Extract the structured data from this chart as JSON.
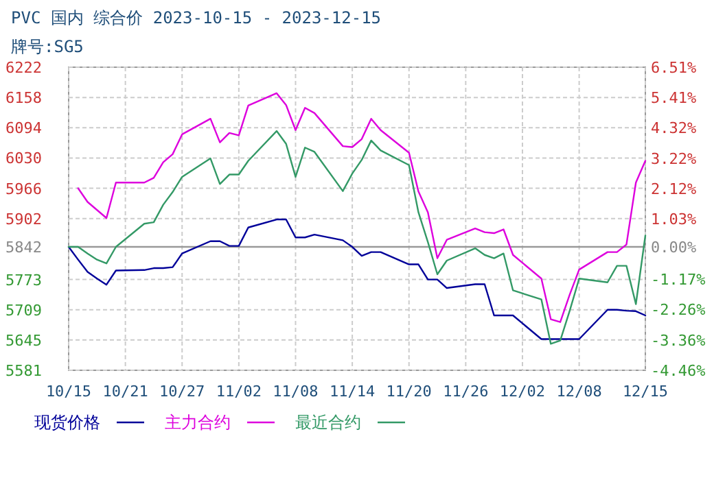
{
  "chart_data": {
    "type": "line",
    "title": "PVC 国内 综合价 2023-10-15 - 2023-12-15",
    "subtitle": "牌号:SG5",
    "x": [
      "2023-10-15",
      "2023-10-16",
      "2023-10-17",
      "2023-10-18",
      "2023-10-19",
      "2023-10-20",
      "2023-10-23",
      "2023-10-24",
      "2023-10-25",
      "2023-10-26",
      "2023-10-27",
      "2023-10-30",
      "2023-10-31",
      "2023-11-01",
      "2023-11-02",
      "2023-11-03",
      "2023-11-06",
      "2023-11-07",
      "2023-11-08",
      "2023-11-09",
      "2023-11-10",
      "2023-11-13",
      "2023-11-14",
      "2023-11-15",
      "2023-11-16",
      "2023-11-17",
      "2023-11-20",
      "2023-11-21",
      "2023-11-22",
      "2023-11-23",
      "2023-11-24",
      "2023-11-27",
      "2023-11-28",
      "2023-11-29",
      "2023-11-30",
      "2023-12-01",
      "2023-12-04",
      "2023-12-05",
      "2023-12-06",
      "2023-12-07",
      "2023-12-08",
      "2023-12-11",
      "2023-12-12",
      "2023-12-13",
      "2023-12-14",
      "2023-12-15"
    ],
    "series": [
      {
        "name": "现货价格",
        "color": "#000099",
        "values": [
          5842,
          5815,
          5789,
          5775,
          5762,
          5792,
          5793,
          5797,
          5797,
          5799,
          5828,
          5854,
          5854,
          5844,
          5844,
          5883,
          5900,
          5900,
          5862,
          5862,
          5868,
          5856,
          5842,
          5823,
          5831,
          5831,
          5805,
          5805,
          5773,
          5773,
          5755,
          5763,
          5763,
          5697,
          5697,
          5697,
          5647,
          5647,
          5647,
          5647,
          5647,
          5709,
          5709,
          5707,
          5706,
          5697
        ]
      },
      {
        "name": "主力合约",
        "color": "#dd00dd",
        "values": [
          null,
          5966,
          5937,
          5920,
          5903,
          5978,
          5978,
          5988,
          6021,
          6038,
          6080,
          6113,
          6063,
          6083,
          6078,
          6141,
          6167,
          6142,
          6089,
          6136,
          6125,
          6055,
          6053,
          6070,
          6113,
          6089,
          6041,
          5959,
          5915,
          5818,
          5857,
          5881,
          5873,
          5871,
          5879,
          5825,
          5775,
          5689,
          5683,
          5741,
          5794,
          5831,
          5831,
          5847,
          5978,
          6024
        ]
      },
      {
        "name": "最近合约",
        "color": "#339966",
        "values": [
          5842,
          5842,
          5828,
          5815,
          5807,
          5842,
          5891,
          5894,
          5931,
          5958,
          5990,
          6029,
          5975,
          5995,
          5995,
          6024,
          6087,
          6060,
          5990,
          6052,
          6043,
          5960,
          5997,
          6026,
          6067,
          6046,
          6015,
          5915,
          5852,
          5784,
          5813,
          5839,
          5825,
          5818,
          5828,
          5750,
          5731,
          5637,
          5644,
          5707,
          5775,
          5767,
          5802,
          5802,
          5721,
          5866
        ]
      }
    ],
    "xlim": [
      "2023-10-15",
      "2023-12-15"
    ],
    "xticks": [
      {
        "value": "2023-10-15",
        "label": "10/15"
      },
      {
        "value": "2023-10-21",
        "label": "10/21"
      },
      {
        "value": "2023-10-27",
        "label": "10/27"
      },
      {
        "value": "2023-11-02",
        "label": "11/02"
      },
      {
        "value": "2023-11-08",
        "label": "11/08"
      },
      {
        "value": "2023-11-14",
        "label": "11/14"
      },
      {
        "value": "2023-11-20",
        "label": "11/20"
      },
      {
        "value": "2023-11-26",
        "label": "11/26"
      },
      {
        "value": "2023-12-02",
        "label": "12/02"
      },
      {
        "value": "2023-12-08",
        "label": "12/08"
      },
      {
        "value": "2023-12-15",
        "label": "12/15"
      }
    ],
    "ylim": [
      5581,
      6222
    ],
    "yticks": [
      5581,
      5645,
      5709,
      5773,
      5842,
      5902,
      5966,
      6030,
      6094,
      6158,
      6222
    ],
    "y2lim": [
      -4.46,
      6.51
    ],
    "y2ticks": [
      {
        "value": -4.46,
        "label": "-4.46%"
      },
      {
        "value": -3.36,
        "label": "-3.36%"
      },
      {
        "value": -2.26,
        "label": "-2.26%"
      },
      {
        "value": -1.17,
        "label": "-1.17%"
      },
      {
        "value": 0,
        "label": "0.00%"
      },
      {
        "value": 1.03,
        "label": "1.03%"
      },
      {
        "value": 2.12,
        "label": "2.12%"
      },
      {
        "value": 3.22,
        "label": "3.22%"
      },
      {
        "value": 4.32,
        "label": "4.32%"
      },
      {
        "value": 5.41,
        "label": "5.41%"
      },
      {
        "value": 6.51,
        "label": "6.51%"
      }
    ],
    "ref_lines": [
      {
        "axis": "y",
        "value": 5842,
        "color": "#999999"
      }
    ],
    "grid": true,
    "legend": "bottom",
    "marker": "none",
    "line_style": "solid"
  }
}
